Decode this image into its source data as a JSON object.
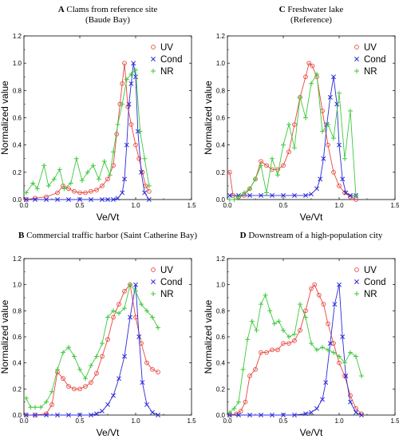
{
  "colors": {
    "UV": "#e8463c",
    "Cond": "#2b2bd9",
    "NR": "#3ec93e"
  },
  "chart_data": [
    {
      "type": "line",
      "letter": "A",
      "title": "Clams from reference site",
      "subtitle": "(Baude Bay)",
      "xlabel": "Ve/Vt",
      "ylabel": "Normalized value",
      "xlim": [
        0,
        1.5
      ],
      "ylim": [
        0,
        1.2
      ],
      "xticks": [
        "0.0",
        "0.5",
        "1.0",
        "1.5"
      ],
      "yticks": [
        "0.0",
        "0.2",
        "0.4",
        "0.6",
        "0.8",
        "1.0",
        "1.2"
      ],
      "legend": {
        "position": "top-right",
        "entries": [
          "UV",
          "Cond",
          "NR"
        ]
      },
      "series": [
        {
          "name": "UV",
          "marker": "circle",
          "x": [
            0.02,
            0.1,
            0.2,
            0.3,
            0.35,
            0.4,
            0.45,
            0.5,
            0.55,
            0.6,
            0.65,
            0.7,
            0.75,
            0.8,
            0.83,
            0.86,
            0.88,
            0.9,
            0.93,
            0.96,
            1.0,
            1.03,
            1.06,
            1.09,
            1.12
          ],
          "y": [
            0.0,
            0.01,
            0.02,
            0.05,
            0.1,
            0.08,
            0.06,
            0.05,
            0.05,
            0.06,
            0.07,
            0.1,
            0.15,
            0.25,
            0.48,
            0.7,
            0.85,
            1.0,
            0.68,
            0.55,
            0.4,
            0.3,
            0.2,
            0.1,
            0.06
          ]
        },
        {
          "name": "Cond",
          "marker": "x",
          "x": [
            0.02,
            0.1,
            0.2,
            0.3,
            0.4,
            0.5,
            0.6,
            0.7,
            0.75,
            0.8,
            0.84,
            0.88,
            0.9,
            0.92,
            0.94,
            0.96,
            0.98,
            1.0,
            1.02,
            1.05,
            1.08,
            1.12
          ],
          "y": [
            0.0,
            0.0,
            0.0,
            0.0,
            0.0,
            0.0,
            0.0,
            0.0,
            0.0,
            0.0,
            0.01,
            0.05,
            0.15,
            0.4,
            0.7,
            0.85,
            1.0,
            0.9,
            0.5,
            0.2,
            0.05,
            0.0
          ]
        },
        {
          "name": "NR",
          "marker": "plus",
          "x": [
            0.02,
            0.08,
            0.12,
            0.18,
            0.22,
            0.27,
            0.32,
            0.36,
            0.42,
            0.47,
            0.52,
            0.57,
            0.62,
            0.67,
            0.72,
            0.77,
            0.8,
            0.84,
            0.88,
            0.92,
            0.96,
            1.0,
            1.04,
            1.08,
            1.12
          ],
          "y": [
            0.05,
            0.12,
            0.08,
            0.25,
            0.1,
            0.15,
            0.22,
            0.08,
            0.12,
            0.3,
            0.14,
            0.2,
            0.25,
            0.15,
            0.28,
            0.18,
            0.35,
            0.55,
            0.7,
            0.88,
            0.92,
            0.95,
            0.5,
            0.3,
            0.1
          ]
        }
      ]
    },
    {
      "type": "line",
      "letter": "C",
      "title": "Freshwater lake",
      "subtitle": "(Reference)",
      "xlabel": "Ve/Vt",
      "ylabel": "Normalized value",
      "xlim": [
        0,
        1.5
      ],
      "ylim": [
        0,
        1.2
      ],
      "xticks": [
        "0.0",
        "0.5",
        "1.0",
        "1.5"
      ],
      "yticks": [
        "0.0",
        "0.2",
        "0.4",
        "0.6",
        "0.8",
        "1.0",
        "1.2"
      ],
      "legend": {
        "position": "top-right",
        "entries": [
          "UV",
          "Cond",
          "NR"
        ]
      },
      "series": [
        {
          "name": "UV",
          "marker": "circle",
          "x": [
            0.02,
            0.05,
            0.1,
            0.15,
            0.2,
            0.25,
            0.3,
            0.35,
            0.4,
            0.45,
            0.5,
            0.55,
            0.6,
            0.65,
            0.7,
            0.73,
            0.76,
            0.8,
            0.85,
            0.9,
            0.95,
            1.0,
            1.05,
            1.1,
            1.15
          ],
          "y": [
            0.2,
            0.03,
            0.02,
            0.03,
            0.08,
            0.15,
            0.28,
            0.25,
            0.22,
            0.22,
            0.25,
            0.35,
            0.55,
            0.75,
            0.9,
            1.0,
            0.98,
            0.9,
            0.65,
            0.4,
            0.2,
            0.1,
            0.05,
            0.02,
            0.0
          ]
        },
        {
          "name": "Cond",
          "marker": "x",
          "x": [
            0.02,
            0.1,
            0.2,
            0.3,
            0.4,
            0.5,
            0.6,
            0.7,
            0.75,
            0.8,
            0.83,
            0.86,
            0.89,
            0.92,
            0.95,
            0.98,
            1.0,
            1.03,
            1.06,
            1.1,
            1.15
          ],
          "y": [
            0.03,
            0.03,
            0.03,
            0.03,
            0.03,
            0.03,
            0.03,
            0.03,
            0.04,
            0.08,
            0.15,
            0.3,
            0.55,
            0.75,
            0.9,
            0.7,
            0.4,
            0.15,
            0.05,
            0.03,
            0.03
          ]
        },
        {
          "name": "NR",
          "marker": "plus",
          "x": [
            0.02,
            0.06,
            0.1,
            0.15,
            0.2,
            0.25,
            0.3,
            0.35,
            0.4,
            0.45,
            0.5,
            0.55,
            0.6,
            0.65,
            0.7,
            0.75,
            0.8,
            0.85,
            0.9,
            0.95,
            1.0,
            1.05,
            1.1,
            1.15
          ],
          "y": [
            0.0,
            0.0,
            0.02,
            0.05,
            0.08,
            0.15,
            0.25,
            0.05,
            0.3,
            0.18,
            0.4,
            0.55,
            0.38,
            0.75,
            0.6,
            0.85,
            0.92,
            0.5,
            0.55,
            0.45,
            0.78,
            0.3,
            0.65,
            0.03
          ]
        }
      ]
    },
    {
      "type": "line",
      "letter": "B",
      "title": "Commercial traffic harbor (Saint Catherine Bay)",
      "subtitle": "",
      "xlabel": "Ve/Vt",
      "ylabel": "Normalized value",
      "xlim": [
        0,
        1.5
      ],
      "ylim": [
        0,
        1.2
      ],
      "xticks": [
        "0.0",
        "0.5",
        "1.0",
        "1.5"
      ],
      "yticks": [
        "0.0",
        "0.2",
        "0.4",
        "0.6",
        "0.8",
        "1.0",
        "1.2"
      ],
      "legend": {
        "position": "top-right",
        "entries": [
          "UV",
          "Cond",
          "NR"
        ]
      },
      "series": [
        {
          "name": "UV",
          "marker": "circle",
          "x": [
            0.02,
            0.1,
            0.2,
            0.25,
            0.3,
            0.35,
            0.4,
            0.45,
            0.5,
            0.55,
            0.6,
            0.65,
            0.7,
            0.75,
            0.8,
            0.85,
            0.9,
            0.95,
            1.0,
            1.05,
            1.1,
            1.15,
            1.2
          ],
          "y": [
            0.0,
            0.0,
            0.01,
            0.08,
            0.33,
            0.28,
            0.22,
            0.2,
            0.2,
            0.22,
            0.25,
            0.32,
            0.45,
            0.58,
            0.75,
            0.85,
            0.95,
            1.0,
            0.75,
            0.55,
            0.4,
            0.35,
            0.33
          ]
        },
        {
          "name": "Cond",
          "marker": "x",
          "x": [
            0.02,
            0.1,
            0.2,
            0.3,
            0.4,
            0.5,
            0.6,
            0.65,
            0.7,
            0.75,
            0.8,
            0.85,
            0.9,
            0.95,
            1.0,
            1.03,
            1.06,
            1.1,
            1.15,
            1.2
          ],
          "y": [
            0.0,
            0.0,
            0.0,
            0.0,
            0.0,
            0.0,
            0.0,
            0.01,
            0.03,
            0.08,
            0.15,
            0.28,
            0.45,
            0.75,
            1.0,
            0.6,
            0.25,
            0.08,
            0.02,
            0.0
          ]
        },
        {
          "name": "NR",
          "marker": "plus",
          "x": [
            0.02,
            0.06,
            0.1,
            0.15,
            0.2,
            0.25,
            0.3,
            0.35,
            0.4,
            0.45,
            0.5,
            0.55,
            0.6,
            0.65,
            0.7,
            0.75,
            0.8,
            0.85,
            0.9,
            0.95,
            1.0,
            1.05,
            1.1,
            1.15,
            1.2
          ],
          "y": [
            0.13,
            0.06,
            0.06,
            0.06,
            0.1,
            0.18,
            0.35,
            0.48,
            0.52,
            0.45,
            0.35,
            0.28,
            0.38,
            0.45,
            0.55,
            0.75,
            0.8,
            0.78,
            0.82,
            1.0,
            0.95,
            0.85,
            0.8,
            0.75,
            0.67
          ]
        }
      ]
    },
    {
      "type": "line",
      "letter": "D",
      "title": "Downstream of a high-population city",
      "subtitle": "",
      "xlabel": "Ve/Vt",
      "ylabel": "Normalized value",
      "xlim": [
        0,
        1.5
      ],
      "ylim": [
        0,
        1.2
      ],
      "xticks": [
        "0.0",
        "0.5",
        "1.0",
        "1.5"
      ],
      "yticks": [
        "0.0",
        "0.2",
        "0.4",
        "0.6",
        "0.8",
        "1.0",
        "1.2"
      ],
      "legend": {
        "position": "top-right",
        "entries": [
          "UV",
          "Cond",
          "NR"
        ]
      },
      "series": [
        {
          "name": "UV",
          "marker": "circle",
          "x": [
            0.02,
            0.08,
            0.12,
            0.16,
            0.2,
            0.25,
            0.3,
            0.35,
            0.4,
            0.45,
            0.5,
            0.55,
            0.6,
            0.65,
            0.7,
            0.75,
            0.78,
            0.82,
            0.86,
            0.9,
            0.95,
            1.0,
            1.05,
            1.1,
            1.15,
            1.2
          ],
          "y": [
            0.0,
            0.01,
            0.03,
            0.1,
            0.3,
            0.35,
            0.48,
            0.48,
            0.5,
            0.5,
            0.55,
            0.55,
            0.57,
            0.65,
            0.8,
            0.97,
            1.0,
            0.92,
            0.85,
            0.7,
            0.55,
            0.4,
            0.3,
            0.15,
            0.05,
            0.01
          ]
        },
        {
          "name": "Cond",
          "marker": "x",
          "x": [
            0.02,
            0.1,
            0.2,
            0.3,
            0.4,
            0.5,
            0.6,
            0.7,
            0.75,
            0.8,
            0.85,
            0.88,
            0.92,
            0.96,
            1.0,
            1.03,
            1.06,
            1.1,
            1.15,
            1.2
          ],
          "y": [
            0.0,
            0.0,
            0.0,
            0.0,
            0.0,
            0.0,
            0.0,
            0.01,
            0.02,
            0.05,
            0.12,
            0.25,
            0.55,
            0.85,
            1.0,
            0.6,
            0.3,
            0.1,
            0.02,
            0.0
          ]
        },
        {
          "name": "NR",
          "marker": "plus",
          "x": [
            0.02,
            0.06,
            0.1,
            0.14,
            0.18,
            0.22,
            0.26,
            0.3,
            0.34,
            0.38,
            0.42,
            0.46,
            0.5,
            0.55,
            0.6,
            0.65,
            0.7,
            0.75,
            0.8,
            0.85,
            0.9,
            0.95,
            1.0,
            1.05,
            1.1,
            1.15,
            1.2
          ],
          "y": [
            0.02,
            0.05,
            0.1,
            0.35,
            0.58,
            0.72,
            0.65,
            0.85,
            0.92,
            0.8,
            0.7,
            0.72,
            0.65,
            0.6,
            0.62,
            0.85,
            0.75,
            0.55,
            0.5,
            0.52,
            0.5,
            0.48,
            0.45,
            0.4,
            0.48,
            0.45,
            0.3
          ]
        }
      ]
    }
  ]
}
